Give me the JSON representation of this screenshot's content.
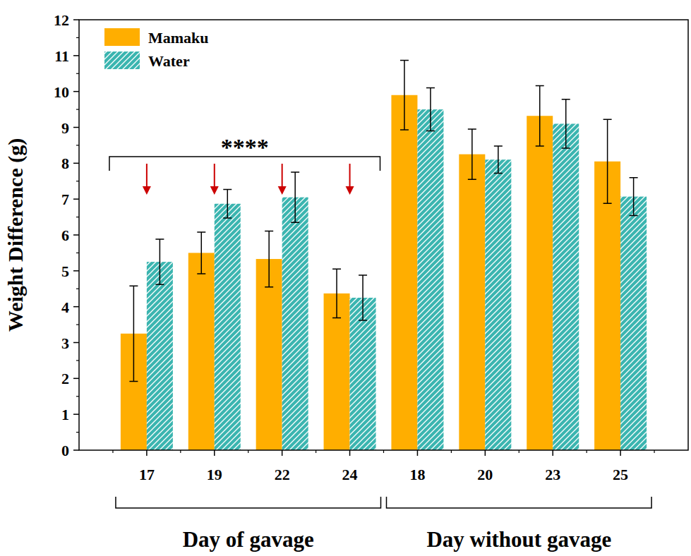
{
  "chart_data": {
    "type": "bar",
    "categories": [
      "17",
      "19",
      "22",
      "24",
      "18",
      "20",
      "23",
      "25"
    ],
    "series": [
      {
        "name": "Mamaku",
        "color": "#ffae00",
        "values": [
          3.25,
          5.5,
          5.33,
          4.37,
          9.9,
          8.25,
          9.32,
          8.05
        ],
        "errors": [
          1.33,
          0.58,
          0.78,
          0.68,
          0.97,
          0.7,
          0.84,
          1.17
        ]
      },
      {
        "name": "Water",
        "color": "#3bb5b0",
        "values": [
          5.25,
          6.87,
          7.05,
          4.25,
          9.5,
          8.1,
          9.1,
          7.07
        ],
        "errors": [
          0.63,
          0.4,
          0.7,
          0.63,
          0.6,
          0.38,
          0.68,
          0.53
        ]
      }
    ],
    "y_label": "Weight Difference (g)",
    "ylim": [
      0,
      12
    ],
    "yticks": [
      0,
      1,
      2,
      3,
      4,
      5,
      6,
      7,
      8,
      9,
      10,
      11,
      12
    ],
    "annotations": [
      "****",
      "Day of gavage",
      "Day without gavage"
    ],
    "legend": "top-left",
    "grid": false
  }
}
